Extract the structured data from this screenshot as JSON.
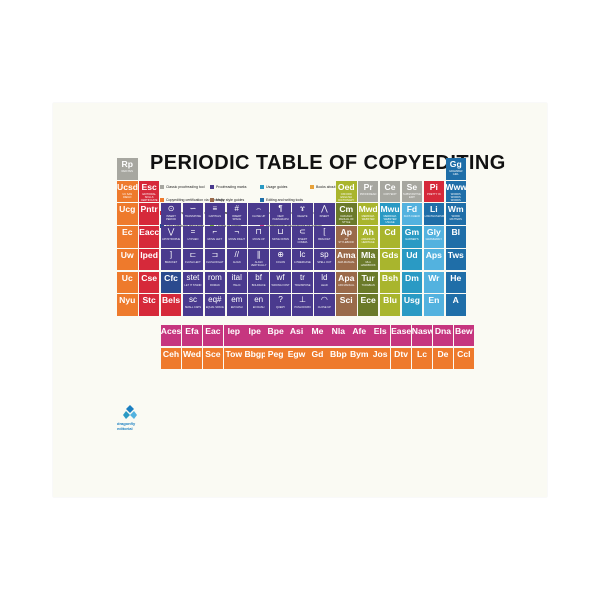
{
  "title": "PERIODIC TABLE OF COPYEDITING",
  "logo": {
    "line1": "dragonfly",
    "line2": "editorial"
  },
  "colors": {
    "orange": "#ee7a2c",
    "red": "#d6293a",
    "purple": "#4a3a8e",
    "pink": "#c6367f",
    "gray": "#a7a7a0",
    "yellowgreen": "#a9b52d",
    "teal": "#2a9ac4",
    "blue": "#1f6ea8",
    "lightblue": "#53b2df",
    "background": "#fafaf3"
  },
  "legend": [
    {
      "label": "Classic proofreading tool",
      "color": "#a7a7a0"
    },
    {
      "label": "Copyediting certification via university",
      "color": "#ee7a2c"
    },
    {
      "label": "Copyediting certification via association",
      "color": "#d6293a"
    },
    {
      "label": "Fact-checking resources",
      "color": "#2a4a8e"
    },
    {
      "label": "Proofreading marks",
      "color": "#4a3a8e"
    },
    {
      "label": "Major style guides",
      "color": "#9a6a4a"
    },
    {
      "label": "Dictionaries",
      "color": "#a9b52d"
    },
    {
      "label": "Levels of editing",
      "color": "#6fa43a"
    },
    {
      "label": "Usage guides",
      "color": "#2a9ac4"
    },
    {
      "label": "Editing and writing tools",
      "color": "#1f6ea8"
    },
    {
      "label": "Podcasts about editing and language",
      "color": "#53b2df"
    },
    {
      "label": "Professional associations for editors",
      "color": "#c6367f"
    },
    {
      "label": "Books about editing",
      "color": "#e8a23a"
    }
  ],
  "cells": [
    {
      "sym": "Rp",
      "sub": "red pen",
      "color": "#a7a7a0"
    },
    {
      "sym": "Gg",
      "sub": "grammar girl",
      "color": "#1f6ea8"
    },
    {
      "sym": "Ucsd",
      "sub": "UC San Diego",
      "color": "#ee7a2c"
    },
    {
      "sym": "Esc",
      "sub": "Editorial Skills Certificate",
      "color": "#d6293a"
    },
    {
      "sym": "Oed",
      "sub": "Oxford English Dictionary",
      "color": "#a9b52d"
    },
    {
      "sym": "Pr",
      "sub": "proofread",
      "color": "#a7a7a0"
    },
    {
      "sym": "Ce",
      "sub": "copyedit",
      "color": "#a7a7a0"
    },
    {
      "sym": "Se",
      "sub": "substantive edit",
      "color": "#a7a7a0"
    },
    {
      "sym": "Pi",
      "sub": "pretty in",
      "color": "#d6293a"
    },
    {
      "sym": "Www",
      "sub": "words words words",
      "color": "#1f6ea8"
    },
    {
      "sym": "Ucg",
      "sub": "",
      "color": "#ee7a2c"
    },
    {
      "sym": "Pntr",
      "sub": "",
      "color": "#d6293a"
    },
    {
      "sym": "Cm",
      "sub": "Chicago Manual of Style",
      "color": "#6b7a2a"
    },
    {
      "sym": "Mwd",
      "sub": "Merriam-Webster",
      "color": "#a9b52d"
    },
    {
      "sym": "Mwu",
      "sub": "Merriam-Webster usage",
      "color": "#2a9ac4"
    },
    {
      "sym": "Fd",
      "sub": "fact-check",
      "color": "#53b2df"
    },
    {
      "sym": "Li",
      "sub": "lingthusiasm",
      "color": "#1f6ea8"
    },
    {
      "sym": "Wm",
      "sub": "word matters",
      "color": "#1f6ea8"
    },
    {
      "sym": "Ec",
      "sub": "",
      "color": "#ee7a2c"
    },
    {
      "sym": "Eacc",
      "sub": "",
      "color": "#d6293a"
    },
    {
      "sym": "Ap",
      "sub": "AP Stylebook",
      "color": "#9a6a4a"
    },
    {
      "sym": "Ah",
      "sub": "American Heritage",
      "color": "#a9b52d"
    },
    {
      "sym": "Cd",
      "sub": "",
      "color": "#a9b52d"
    },
    {
      "sym": "Gm",
      "sub": "Garner's",
      "color": "#2a9ac4"
    },
    {
      "sym": "Gly",
      "sub": "grammarly",
      "color": "#53b2df"
    },
    {
      "sym": "Bl",
      "sub": "",
      "color": "#1f6ea8"
    },
    {
      "sym": "Uw",
      "sub": "",
      "color": "#ee7a2c"
    },
    {
      "sym": "Iped",
      "sub": "",
      "color": "#d6293a"
    },
    {
      "sym": "Ama",
      "sub": "AMA Manual",
      "color": "#9a6a4a"
    },
    {
      "sym": "Mla",
      "sub": "MLA Handbook",
      "color": "#6b7a2a"
    },
    {
      "sym": "Gds",
      "sub": "",
      "color": "#a9b52d"
    },
    {
      "sym": "Ud",
      "sub": "",
      "color": "#2a9ac4"
    },
    {
      "sym": "Aps",
      "sub": "",
      "color": "#53b2df"
    },
    {
      "sym": "Tws",
      "sub": "",
      "color": "#1f6ea8"
    },
    {
      "sym": "Uc",
      "sub": "",
      "color": "#ee7a2c"
    },
    {
      "sym": "Cse",
      "sub": "",
      "color": "#d6293a"
    },
    {
      "sym": "Cfc",
      "sub": "",
      "color": "#2a4a8e"
    },
    {
      "sym": "Apa",
      "sub": "APA Manual",
      "color": "#9a6a4a"
    },
    {
      "sym": "Tur",
      "sub": "Turabian",
      "color": "#6b7a2a"
    },
    {
      "sym": "Bsh",
      "sub": "",
      "color": "#a9b52d"
    },
    {
      "sym": "Dm",
      "sub": "",
      "color": "#2a9ac4"
    },
    {
      "sym": "Wr",
      "sub": "",
      "color": "#53b2df"
    },
    {
      "sym": "He",
      "sub": "",
      "color": "#1f6ea8"
    },
    {
      "sym": "Nyu",
      "sub": "",
      "color": "#ee7a2c"
    },
    {
      "sym": "Stc",
      "sub": "",
      "color": "#d6293a"
    },
    {
      "sym": "Bels",
      "sub": "",
      "color": "#d6293a"
    },
    {
      "sym": "Sci",
      "sub": "",
      "color": "#9a6a4a"
    },
    {
      "sym": "Ece",
      "sub": "",
      "color": "#6b7a2a"
    },
    {
      "sym": "Blu",
      "sub": "",
      "color": "#a9b52d"
    },
    {
      "sym": "Usg",
      "sub": "",
      "color": "#2a9ac4"
    },
    {
      "sym": "En",
      "sub": "",
      "color": "#53b2df"
    },
    {
      "sym": "A",
      "sub": "",
      "color": "#1f6ea8"
    },
    {
      "sym": "Aces",
      "sub": "",
      "color": "#c6367f"
    },
    {
      "sym": "Efa",
      "sub": "",
      "color": "#c6367f"
    },
    {
      "sym": "Eac",
      "sub": "",
      "color": "#c6367f"
    },
    {
      "sym": "Iep",
      "sub": "",
      "color": "#c6367f"
    },
    {
      "sym": "Ipe",
      "sub": "",
      "color": "#c6367f"
    },
    {
      "sym": "Bpe",
      "sub": "",
      "color": "#c6367f"
    },
    {
      "sym": "Asi",
      "sub": "",
      "color": "#c6367f"
    },
    {
      "sym": "Me",
      "sub": "",
      "color": "#c6367f"
    },
    {
      "sym": "Nla",
      "sub": "",
      "color": "#c6367f"
    },
    {
      "sym": "Afe",
      "sub": "",
      "color": "#c6367f"
    },
    {
      "sym": "Els",
      "sub": "",
      "color": "#c6367f"
    },
    {
      "sym": "Ease",
      "sub": "",
      "color": "#c6367f"
    },
    {
      "sym": "Nasw",
      "sub": "",
      "color": "#c6367f"
    },
    {
      "sym": "Dna",
      "sub": "",
      "color": "#c6367f"
    },
    {
      "sym": "Bew",
      "sub": "",
      "color": "#c6367f"
    },
    {
      "sym": "Ceh",
      "sub": "",
      "color": "#ee7a2c"
    },
    {
      "sym": "Wed",
      "sub": "",
      "color": "#ee7a2c"
    },
    {
      "sym": "Sce",
      "sub": "",
      "color": "#ee7a2c"
    },
    {
      "sym": "Tow",
      "sub": "",
      "color": "#ee7a2c"
    },
    {
      "sym": "Bbgp",
      "sub": "",
      "color": "#ee7a2c"
    },
    {
      "sym": "Peg",
      "sub": "",
      "color": "#ee7a2c"
    },
    {
      "sym": "Egw",
      "sub": "",
      "color": "#ee7a2c"
    },
    {
      "sym": "Gd",
      "sub": "",
      "color": "#ee7a2c"
    },
    {
      "sym": "Bbp",
      "sub": "",
      "color": "#ee7a2c"
    },
    {
      "sym": "Bym",
      "sub": "",
      "color": "#ee7a2c"
    },
    {
      "sym": "Jos",
      "sub": "",
      "color": "#ee7a2c"
    },
    {
      "sym": "Dtv",
      "sub": "",
      "color": "#ee7a2c"
    },
    {
      "sym": "Lc",
      "sub": "",
      "color": "#ee7a2c"
    },
    {
      "sym": "De",
      "sub": "",
      "color": "#ee7a2c"
    },
    {
      "sym": "Ccl",
      "sub": "",
      "color": "#ee7a2c"
    }
  ],
  "marks": [
    {
      "glyph": "⋀",
      "sub": "insert"
    },
    {
      "glyph": "ɤ",
      "sub": "delete"
    },
    {
      "glyph": "¶",
      "sub": "new paragraph"
    },
    {
      "glyph": "⌢",
      "sub": "close up"
    },
    {
      "glyph": "#",
      "sub": "insert space"
    },
    {
      "glyph": "≡",
      "sub": "capitals"
    },
    {
      "glyph": "∽",
      "sub": "transpose"
    },
    {
      "glyph": "⊙",
      "sub": "insert period"
    },
    {
      "glyph": "⋁",
      "sub": "apostrophe"
    },
    {
      "glyph": "=",
      "sub": "hyphen"
    },
    {
      "glyph": "⌐",
      "sub": "move left"
    },
    {
      "glyph": "¬",
      "sub": "move right"
    },
    {
      "glyph": "⊓",
      "sub": "move up"
    },
    {
      "glyph": "⊔",
      "sub": "move down"
    },
    {
      "glyph": "⊂",
      "sub": "insert comma"
    },
    {
      "glyph": "[",
      "sub": "bracket"
    },
    {
      "glyph": "]",
      "sub": "bracket"
    },
    {
      "glyph": "⊏",
      "sub": "flush left"
    },
    {
      "glyph": "⊐",
      "sub": "flush right"
    },
    {
      "glyph": "//",
      "sub": "align"
    },
    {
      "glyph": "∥",
      "sub": "align vertically"
    },
    {
      "glyph": "⊕",
      "sub": "colon"
    },
    {
      "glyph": "lc",
      "sub": "lowercase"
    },
    {
      "glyph": "sp",
      "sub": "spell out"
    },
    {
      "glyph": "stet",
      "sub": "let it stand"
    },
    {
      "glyph": "rom",
      "sub": "roman"
    },
    {
      "glyph": "ital",
      "sub": "italic"
    },
    {
      "glyph": "bf",
      "sub": "boldface"
    },
    {
      "glyph": "wf",
      "sub": "wrong font"
    },
    {
      "glyph": "tr",
      "sub": "transpose"
    },
    {
      "glyph": "ld",
      "sub": "lead"
    },
    {
      "glyph": "sc",
      "sub": "small caps"
    },
    {
      "glyph": "eq#",
      "sub": "equal space"
    },
    {
      "glyph": "em",
      "sub": "em dash"
    },
    {
      "glyph": "en",
      "sub": "en dash"
    },
    {
      "glyph": "?",
      "sub": "query"
    },
    {
      "glyph": "⊥",
      "sub": "push down"
    },
    {
      "glyph": "◠",
      "sub": "close up"
    },
    {
      "glyph": "≠",
      "sub": "not equal"
    },
    {
      "glyph": "♯",
      "sub": "space"
    },
    {
      "glyph": "⌃",
      "sub": "caret"
    },
    {
      "glyph": "▭",
      "sub": "box"
    },
    {
      "glyph": "○",
      "sub": "spell out"
    },
    {
      "glyph": "○",
      "sub": "spell out"
    },
    {
      "glyph": "↶",
      "sub": "run in"
    },
    {
      "glyph": "~",
      "sub": "wave"
    },
    {
      "glyph": "√",
      "sub": "check"
    },
    {
      "glyph": "◎",
      "sub": "circle"
    }
  ]
}
